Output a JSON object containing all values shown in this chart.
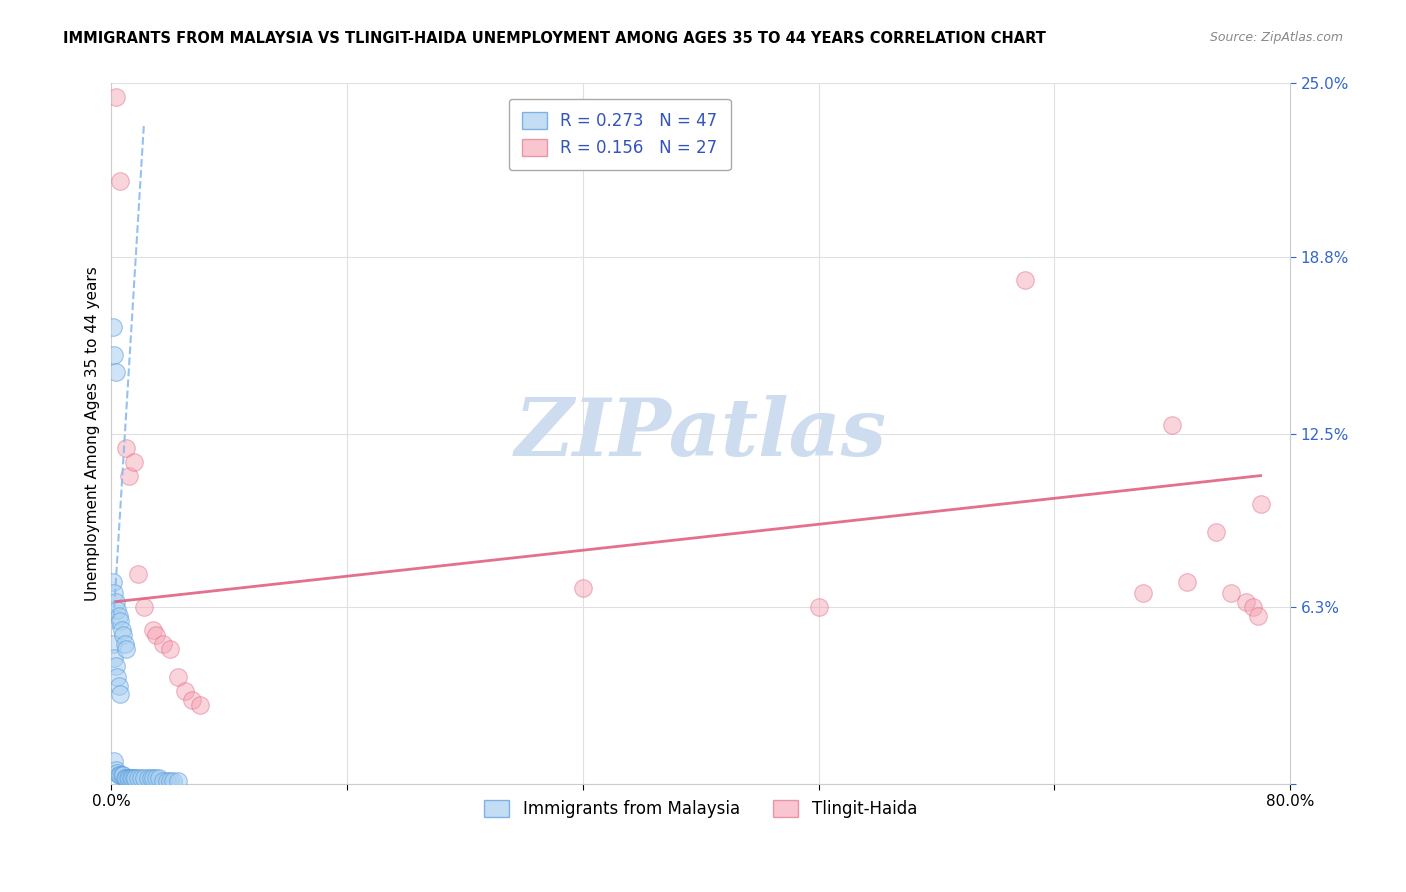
{
  "title": "IMMIGRANTS FROM MALAYSIA VS TLINGIT-HAIDA UNEMPLOYMENT AMONG AGES 35 TO 44 YEARS CORRELATION CHART",
  "source": "Source: ZipAtlas.com",
  "ylabel": "Unemployment Among Ages 35 to 44 years",
  "xlim": [
    0,
    0.8
  ],
  "ylim": [
    0,
    0.25
  ],
  "ytick_vals": [
    0.0,
    0.063,
    0.125,
    0.188,
    0.25
  ],
  "ytick_labels": [
    "",
    "6.3%",
    "12.5%",
    "18.8%",
    "25.0%"
  ],
  "xtick_vals": [
    0.0,
    0.16,
    0.32,
    0.48,
    0.64,
    0.8
  ],
  "xtick_labels": [
    "0.0%",
    "",
    "",
    "",
    "",
    "80.0%"
  ],
  "legend_blue_R": "0.273",
  "legend_blue_N": "47",
  "legend_pink_R": "0.156",
  "legend_pink_N": "27",
  "watermark_text": "ZIPatlas",
  "blue_x": [
    0.001,
    0.001,
    0.001,
    0.002,
    0.002,
    0.002,
    0.002,
    0.003,
    0.003,
    0.003,
    0.003,
    0.004,
    0.004,
    0.004,
    0.005,
    0.005,
    0.005,
    0.006,
    0.006,
    0.006,
    0.007,
    0.007,
    0.008,
    0.008,
    0.009,
    0.009,
    0.01,
    0.01,
    0.011,
    0.012,
    0.013,
    0.014,
    0.015,
    0.016,
    0.018,
    0.02,
    0.022,
    0.025,
    0.027,
    0.028,
    0.03,
    0.032,
    0.035,
    0.038,
    0.04,
    0.042,
    0.045
  ],
  "blue_y": [
    0.163,
    0.072,
    0.05,
    0.153,
    0.068,
    0.045,
    0.008,
    0.147,
    0.065,
    0.042,
    0.005,
    0.062,
    0.038,
    0.004,
    0.06,
    0.035,
    0.003,
    0.058,
    0.032,
    0.003,
    0.055,
    0.003,
    0.053,
    0.003,
    0.05,
    0.002,
    0.048,
    0.002,
    0.002,
    0.002,
    0.002,
    0.002,
    0.002,
    0.002,
    0.002,
    0.002,
    0.002,
    0.002,
    0.002,
    0.002,
    0.002,
    0.002,
    0.001,
    0.001,
    0.001,
    0.001,
    0.001
  ],
  "pink_x": [
    0.003,
    0.006,
    0.01,
    0.012,
    0.015,
    0.018,
    0.022,
    0.028,
    0.03,
    0.035,
    0.04,
    0.045,
    0.05,
    0.055,
    0.06,
    0.32,
    0.48,
    0.62,
    0.7,
    0.72,
    0.73,
    0.75,
    0.76,
    0.77,
    0.775,
    0.778,
    0.78
  ],
  "pink_y": [
    0.245,
    0.215,
    0.12,
    0.11,
    0.115,
    0.075,
    0.063,
    0.055,
    0.053,
    0.05,
    0.048,
    0.038,
    0.033,
    0.03,
    0.028,
    0.07,
    0.063,
    0.18,
    0.068,
    0.128,
    0.072,
    0.09,
    0.068,
    0.065,
    0.063,
    0.06,
    0.1
  ],
  "blue_line_x": [
    0.001,
    0.022
  ],
  "blue_line_y": [
    0.055,
    0.235
  ],
  "pink_line_x": [
    0.003,
    0.78
  ],
  "pink_line_y": [
    0.065,
    0.11
  ],
  "blue_dot_color": "#a8cff0",
  "blue_edge_color": "#5599dd",
  "pink_dot_color": "#f5a0b0",
  "pink_edge_color": "#e06080",
  "blue_line_color": "#88bbee",
  "pink_line_color": "#e06080",
  "grid_color": "#e0e0e0",
  "watermark_color": "#cddcee",
  "bg_color": "#ffffff",
  "right_tick_color": "#3366cc"
}
